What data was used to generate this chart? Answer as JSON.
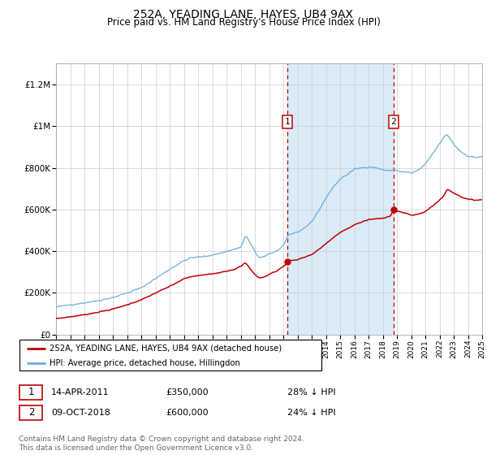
{
  "title": "252A, YEADING LANE, HAYES, UB4 9AX",
  "subtitle": "Price paid vs. HM Land Registry's House Price Index (HPI)",
  "title_fontsize": 10,
  "subtitle_fontsize": 8.5,
  "hpi_color": "#6aaed6",
  "price_color": "#c00000",
  "background_color": "#ffffff",
  "plot_bg_color": "#ffffff",
  "shaded_region_color": "#daeaf7",
  "grid_color": "#cccccc",
  "ylim": [
    0,
    1300000
  ],
  "yticks": [
    0,
    200000,
    400000,
    600000,
    800000,
    1000000,
    1200000
  ],
  "ytick_labels": [
    "£0",
    "£200K",
    "£400K",
    "£600K",
    "£800K",
    "£1M",
    "£1.2M"
  ],
  "xstart_year": 1995,
  "xend_year": 2025,
  "sale1_year": 2011.28,
  "sale1_price": 350000,
  "sale2_year": 2018.77,
  "sale2_price": 600000,
  "legend_price_label": "252A, YEADING LANE, HAYES, UB4 9AX (detached house)",
  "legend_hpi_label": "HPI: Average price, detached house, Hillingdon",
  "annotation1_num": "1",
  "annotation1_date": "14-APR-2011",
  "annotation1_price": "£350,000",
  "annotation1_hpi": "28% ↓ HPI",
  "annotation2_num": "2",
  "annotation2_date": "09-OCT-2018",
  "annotation2_price": "£600,000",
  "annotation2_hpi": "24% ↓ HPI",
  "footer": "Contains HM Land Registry data © Crown copyright and database right 2024.\nThis data is licensed under the Open Government Licence v3.0.",
  "footer_fontsize": 6.5
}
